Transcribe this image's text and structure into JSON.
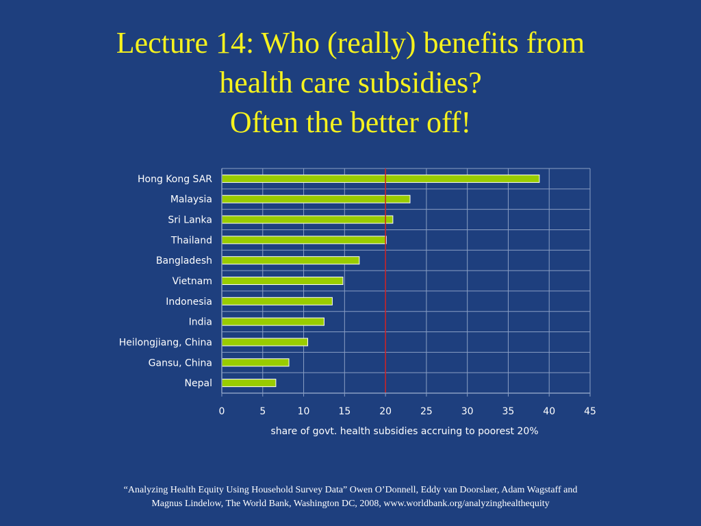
{
  "slide": {
    "title_lines": [
      "Lecture 14: Who (really) benefits from",
      "health care subsidies?",
      "Often the better off!"
    ],
    "source_lines": [
      "“Analyzing Health Equity Using Household Survey Data” Owen O’Donnell, Eddy van Doorslaer, Adam Wagstaff and",
      "Magnus Lindelow, The World Bank, Washington DC, 2008, www.worldbank.org/analyzinghealthequity"
    ]
  },
  "colors": {
    "background": "#1e3f7e",
    "title": "#f6f21e",
    "bar_fill": "#99cc00",
    "grid": "#8a9fc4",
    "reference_line": "#d02020",
    "text": "#ffffff"
  },
  "chart_data": {
    "type": "bar",
    "orientation": "horizontal",
    "categories": [
      "Hong Kong SAR",
      "Malaysia",
      "Sri Lanka",
      "Thailand",
      "Bangladesh",
      "Vietnam",
      "Indonesia",
      "India",
      "Heilongjiang, China",
      "Gansu, China",
      "Nepal"
    ],
    "values": [
      38.8,
      23.0,
      20.9,
      20.1,
      16.8,
      14.8,
      13.5,
      12.5,
      10.5,
      8.2,
      6.6
    ],
    "xlabel": "share of govt. health subsidies accruing to poorest 20%",
    "xlim": [
      0,
      45
    ],
    "xticks": [
      0,
      5,
      10,
      15,
      20,
      25,
      30,
      35,
      40,
      45
    ],
    "reference_line": 20,
    "grid": true,
    "legend": "none"
  }
}
